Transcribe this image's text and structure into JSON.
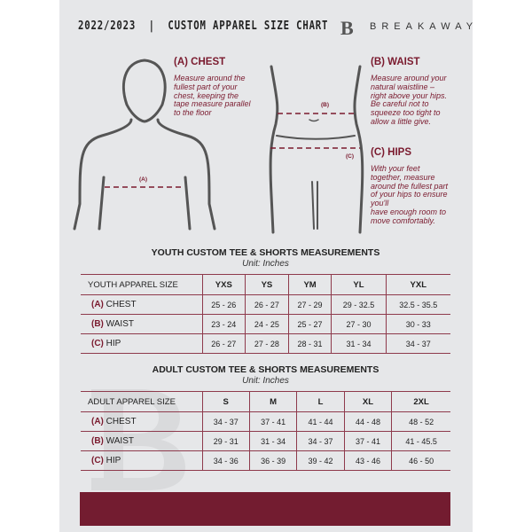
{
  "header": {
    "title": "2022/2023  |  CUSTOM APPAREL SIZE CHART",
    "logo_letter": "B",
    "brand": "BREAKAWAY"
  },
  "measure": {
    "chest": {
      "title": "(A) CHEST",
      "text": "Measure around the\nfullest part of your\nchest, keeping the\ntape measure parallel\nto the floor",
      "marker": "(A)"
    },
    "waist": {
      "title": "(B) WAIST",
      "text": "Measure around your\nnatural waistline –\nright above your hips.\nBe careful not to\nsqueeze too tight to\nallow a little give.",
      "marker": "(B)"
    },
    "hips": {
      "title": "(C) HIPS",
      "text": "With your feet\ntogether, measure\naround the fullest part\nof your hips to ensure\nyou'll\nhave enough room to\nmove comfortably.",
      "marker": "(C)"
    }
  },
  "youth": {
    "title": "YOUTH CUSTOM TEE & SHORTS MEASUREMENTS",
    "unit": "Unit: Inches",
    "header": "YOUTH APPAREL SIZE",
    "sizes": [
      "YXS",
      "YS",
      "YM",
      "YL",
      "YXL"
    ],
    "rows": [
      {
        "code": "(A)",
        "name": "CHEST",
        "values": [
          "25 - 26",
          "26 - 27",
          "27 - 29",
          "29 - 32.5",
          "32.5 - 35.5"
        ]
      },
      {
        "code": "(B)",
        "name": "WAIST",
        "values": [
          "23 - 24",
          "24 - 25",
          "25 - 27",
          "27 - 30",
          "30 - 33"
        ]
      },
      {
        "code": "(C)",
        "name": "HIP",
        "values": [
          "26 - 27",
          "27 - 28",
          "28 - 31",
          "31 - 34",
          "34 - 37"
        ]
      }
    ]
  },
  "adult": {
    "title": "ADULT CUSTOM TEE & SHORTS MEASUREMENTS",
    "unit": "Unit: Inches",
    "header": "ADULT APPAREL SIZE",
    "sizes": [
      "S",
      "M",
      "L",
      "XL",
      "2XL"
    ],
    "rows": [
      {
        "code": "(A)",
        "name": "CHEST",
        "values": [
          "34 - 37",
          "37 - 41",
          "41 - 44",
          "44 - 48",
          "48 - 52"
        ]
      },
      {
        "code": "(B)",
        "name": "WAIST",
        "values": [
          "29 - 31",
          "31 - 34",
          "34 - 37",
          "37 - 41",
          "41 - 45.5"
        ]
      },
      {
        "code": "(C)",
        "name": "HIP",
        "values": [
          "34 - 36",
          "36 - 39",
          "39 - 42",
          "43 - 46",
          "46 - 50"
        ]
      }
    ]
  },
  "colors": {
    "accent": "#731c30",
    "panel": "#e6e7e9"
  }
}
